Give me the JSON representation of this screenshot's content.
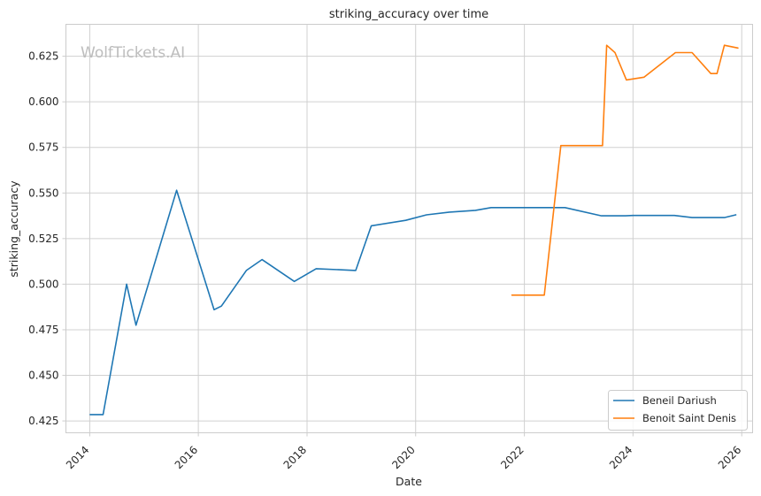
{
  "watermark": "WolfTickets.AI",
  "chart_data": {
    "type": "line",
    "title": "striking_accuracy over time",
    "xlabel": "Date",
    "ylabel": "striking_accuracy",
    "x_axis": "date",
    "xlim": [
      "2013-07-25",
      "2026-03-15"
    ],
    "ylim": [
      0.4185,
      0.6425
    ],
    "x_ticks": [
      "2014",
      "2016",
      "2018",
      "2020",
      "2022",
      "2024",
      "2026"
    ],
    "y_ticks": [
      "0.425",
      "0.450",
      "0.475",
      "0.500",
      "0.525",
      "0.550",
      "0.575",
      "0.600",
      "0.625"
    ],
    "grid": true,
    "legend_position": "bottom-right",
    "series": [
      {
        "name": "Beneil Dariush",
        "color": "#1f77b4",
        "points": [
          [
            "2014-01-04",
            0.4285
          ],
          [
            "2014-04-01",
            0.4285
          ],
          [
            "2014-09-06",
            0.5
          ],
          [
            "2014-11-08",
            0.4775
          ],
          [
            "2015-08-08",
            0.5515
          ],
          [
            "2016-04-16",
            0.486
          ],
          [
            "2016-06-04",
            0.488
          ],
          [
            "2016-11-19",
            0.5075
          ],
          [
            "2017-03-04",
            0.5135
          ],
          [
            "2017-10-07",
            0.5015
          ],
          [
            "2018-03-03",
            0.5085
          ],
          [
            "2018-11-24",
            0.5075
          ],
          [
            "2019-03-09",
            0.532
          ],
          [
            "2019-10-26",
            0.535
          ],
          [
            "2020-03-14",
            0.538
          ],
          [
            "2020-08-15",
            0.5395
          ],
          [
            "2021-02-06",
            0.5405
          ],
          [
            "2021-05-22",
            0.542
          ],
          [
            "2022-10-01",
            0.542
          ],
          [
            "2023-06-03",
            0.5375
          ],
          [
            "2023-11-11",
            0.5375
          ],
          [
            "2024-01-01",
            0.5377
          ],
          [
            "2024-10-05",
            0.5377
          ],
          [
            "2025-02-01",
            0.5365
          ],
          [
            "2025-09-06",
            0.5365
          ],
          [
            "2025-11-22",
            0.538
          ]
        ]
      },
      {
        "name": "Benoit Saint Denis",
        "color": "#ff7f0e",
        "points": [
          [
            "2021-10-09",
            0.494
          ],
          [
            "2022-05-15",
            0.494
          ],
          [
            "2022-09-03",
            0.576
          ],
          [
            "2023-06-10",
            0.576
          ],
          [
            "2023-07-08",
            0.631
          ],
          [
            "2023-09-02",
            0.627
          ],
          [
            "2023-11-18",
            0.612
          ],
          [
            "2024-03-16",
            0.6135
          ],
          [
            "2024-10-12",
            0.627
          ],
          [
            "2025-02-01",
            0.627
          ],
          [
            "2025-06-07",
            0.6155
          ],
          [
            "2025-07-19",
            0.6155
          ],
          [
            "2025-09-06",
            0.631
          ],
          [
            "2025-12-06",
            0.6295
          ]
        ]
      }
    ]
  }
}
